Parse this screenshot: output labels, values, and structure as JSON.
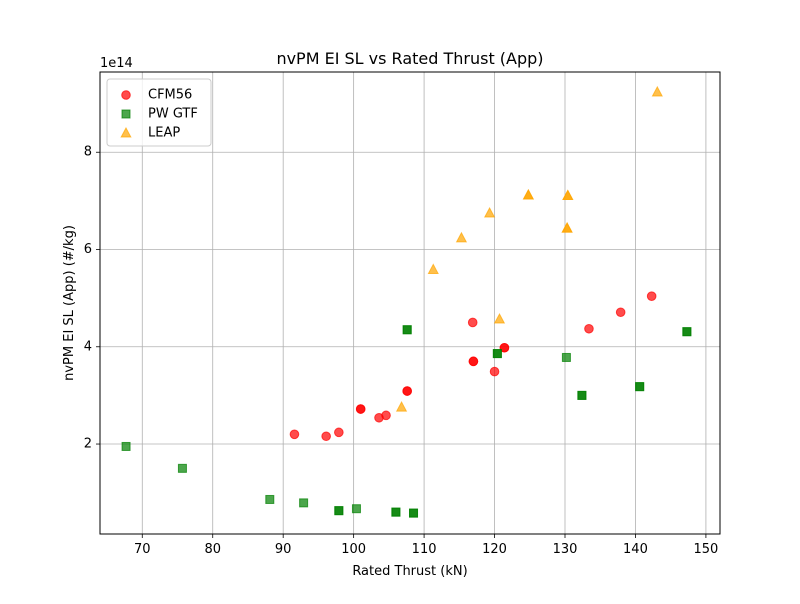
{
  "chart_data": {
    "type": "scatter",
    "title": "nvPM EI SL vs Rated Thrust (App)",
    "xlabel": "Rated Thrust (kN)",
    "ylabel": "nvPM EI SL (App) (#/kg)",
    "y_offset_label": "1e14",
    "xlim": [
      64,
      152
    ],
    "ylim": [
      0.15,
      9.65
    ],
    "x_ticks": [
      70,
      80,
      90,
      100,
      110,
      120,
      130,
      140,
      150
    ],
    "y_ticks": [
      2,
      4,
      6,
      8
    ],
    "grid": true,
    "legend_position": "upper-left",
    "series": [
      {
        "name": "CFM56",
        "color": "#ff0000",
        "marker": "circle",
        "points": [
          [
            91.6,
            2.2
          ],
          [
            96.1,
            2.16
          ],
          [
            97.9,
            2.24
          ],
          [
            101.0,
            2.72
          ],
          [
            101.0,
            2.72
          ],
          [
            103.6,
            2.54
          ],
          [
            104.6,
            2.59
          ],
          [
            107.6,
            3.09
          ],
          [
            107.6,
            3.09
          ],
          [
            116.9,
            4.5
          ],
          [
            117.0,
            3.7
          ],
          [
            117.0,
            3.7
          ],
          [
            120.0,
            3.49
          ],
          [
            121.4,
            3.98
          ],
          [
            121.4,
            3.98
          ],
          [
            133.4,
            4.37
          ],
          [
            137.9,
            4.71
          ],
          [
            142.3,
            5.04
          ]
        ]
      },
      {
        "name": "PW GTF",
        "color": "#008000",
        "marker": "square",
        "points": [
          [
            67.7,
            1.95
          ],
          [
            75.7,
            1.5
          ],
          [
            88.1,
            0.86
          ],
          [
            92.9,
            0.79
          ],
          [
            97.9,
            0.63
          ],
          [
            97.9,
            0.63
          ],
          [
            100.4,
            0.67
          ],
          [
            106.0,
            0.6
          ],
          [
            106.0,
            0.6
          ],
          [
            107.6,
            4.35
          ],
          [
            107.6,
            4.35
          ],
          [
            108.5,
            0.58
          ],
          [
            108.5,
            0.58
          ],
          [
            120.4,
            3.86
          ],
          [
            120.4,
            3.86
          ],
          [
            130.2,
            3.78
          ],
          [
            132.4,
            3.0
          ],
          [
            132.4,
            3.0
          ],
          [
            140.6,
            3.18
          ],
          [
            140.6,
            3.18
          ],
          [
            147.3,
            4.31
          ],
          [
            147.3,
            4.31
          ]
        ]
      },
      {
        "name": "LEAP",
        "color": "#ffa500",
        "marker": "triangle",
        "points": [
          [
            106.8,
            2.76
          ],
          [
            111.3,
            5.59
          ],
          [
            115.3,
            6.24
          ],
          [
            119.3,
            6.75
          ],
          [
            120.7,
            4.57
          ],
          [
            124.8,
            7.12
          ],
          [
            124.8,
            7.12
          ],
          [
            130.3,
            6.44
          ],
          [
            130.3,
            6.44
          ],
          [
            130.4,
            7.11
          ],
          [
            130.4,
            7.11
          ],
          [
            143.1,
            9.24
          ]
        ]
      }
    ]
  }
}
